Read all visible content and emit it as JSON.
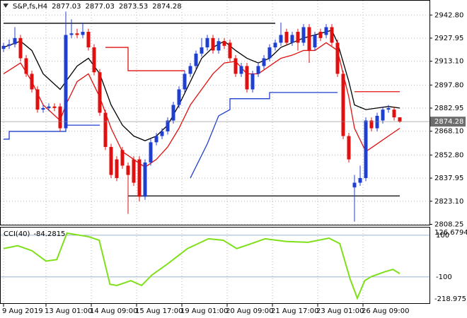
{
  "chart_data": [
    {
      "type": "candlestick",
      "title": "S&P,fs,H4",
      "open": [
        2921,
        2923,
        2924,
        2928,
        2915,
        2905,
        2895,
        2882,
        2883,
        2884,
        2884,
        2870,
        2930,
        2931,
        2930,
        2932,
        2922,
        2906,
        2880,
        2858,
        2850,
        2856,
        2846,
        2850,
        2850,
        2826,
        2848,
        2861,
        2865,
        2868,
        2875,
        2885,
        2895,
        2905,
        2910,
        2918,
        2922,
        2928,
        2920,
        2926,
        2925,
        2915,
        2905,
        2910,
        2895,
        2905,
        2910,
        2915,
        2922,
        2925,
        2932,
        2925,
        2932,
        2925,
        2935,
        2922,
        2932,
        2930,
        2935,
        2925,
        2905,
        2865,
        2832,
        2835,
        2838,
        2875,
        2870,
        2875,
        2882,
        2882,
        2877.03
      ],
      "high": [
        2925,
        2927,
        2935,
        2930,
        2917,
        2907,
        2897,
        2885,
        2886,
        2886,
        2886,
        2945,
        2940,
        2934,
        2938,
        2934,
        2924,
        2908,
        2882,
        2860,
        2852,
        2858,
        2848,
        2852,
        2852,
        2850,
        2863,
        2867,
        2870,
        2877,
        2887,
        2897,
        2907,
        2912,
        2920,
        2928,
        2930,
        2930,
        2928,
        2928,
        2927,
        2917,
        2912,
        2912,
        2907,
        2912,
        2917,
        2924,
        2927,
        2938,
        2934,
        2932,
        2934,
        2937,
        2937,
        2932,
        2934,
        2937,
        2937,
        2927,
        2907,
        2867,
        2840,
        2846,
        2877,
        2877,
        2880,
        2884,
        2885,
        2884,
        2877.03
      ],
      "low": [
        2919,
        2921,
        2922,
        2913,
        2903,
        2893,
        2880,
        2880,
        2881,
        2881,
        2868,
        2868,
        2928,
        2928,
        2928,
        2920,
        2904,
        2878,
        2856,
        2838,
        2836,
        2844,
        2815,
        2833,
        2823,
        2824,
        2846,
        2859,
        2863,
        2866,
        2873,
        2883,
        2893,
        2903,
        2908,
        2916,
        2920,
        2918,
        2918,
        2921,
        2913,
        2903,
        2903,
        2893,
        2893,
        2903,
        2908,
        2913,
        2920,
        2923,
        2923,
        2923,
        2920,
        2923,
        2912,
        2920,
        2926,
        2928,
        2923,
        2903,
        2863,
        2848,
        2810,
        2833,
        2836,
        2868,
        2868,
        2873,
        2880,
        2875,
        2873.53
      ],
      "close": [
        2923,
        2924,
        2928,
        2915,
        2905,
        2895,
        2882,
        2883,
        2884,
        2883,
        2870,
        2930,
        2931,
        2930,
        2932,
        2922,
        2906,
        2880,
        2858,
        2840,
        2838,
        2846,
        2840,
        2835,
        2826,
        2848,
        2861,
        2865,
        2868,
        2875,
        2885,
        2895,
        2905,
        2910,
        2918,
        2922,
        2928,
        2920,
        2926,
        2923,
        2915,
        2905,
        2910,
        2895,
        2905,
        2910,
        2915,
        2922,
        2925,
        2930,
        2925,
        2930,
        2925,
        2935,
        2920,
        2930,
        2928,
        2935,
        2925,
        2905,
        2865,
        2850,
        2835,
        2838,
        2875,
        2870,
        2878,
        2882,
        2883,
        2877,
        2874.28
      ],
      "bull_color": "#1f3fd0",
      "bear_color": "#e01010",
      "ylim": [
        2808.0,
        2952.0
      ],
      "yticks": [
        {
          "value": 2942.8,
          "label": "2942.80"
        },
        {
          "value": 2927.95,
          "label": "2927.95"
        },
        {
          "value": 2913.1,
          "label": "2913.10"
        },
        {
          "value": 2897.8,
          "label": "2897.80"
        },
        {
          "value": 2882.95,
          "label": "2882.95"
        },
        {
          "value": 2868.1,
          "label": "2868.10"
        },
        {
          "value": 2852.8,
          "label": "2852.80"
        },
        {
          "value": 2837.95,
          "label": "2837.95"
        },
        {
          "value": 2823.1,
          "label": "2823.10"
        },
        {
          "value": 2808.25,
          "label": "2808.25"
        }
      ],
      "xticks": [
        {
          "value": 0,
          "label": "9 Aug 2019"
        },
        {
          "value": 7.5,
          "label": "13 Aug 01:00"
        },
        {
          "value": 15.5,
          "label": "14 Aug 09:00"
        },
        {
          "value": 23.5,
          "label": "15 Aug 17:00"
        },
        {
          "value": 31.5,
          "label": "19 Aug 01:00"
        },
        {
          "value": 39.5,
          "label": "20 Aug 09:00"
        },
        {
          "value": 47.5,
          "label": "21 Aug 17:00"
        },
        {
          "value": 55.5,
          "label": "23 Aug 01:00"
        },
        {
          "value": 63.5,
          "label": "26 Aug 09:00"
        }
      ],
      "grid": true,
      "lines": [
        {
          "color": "#000000",
          "x": [
            0,
            3,
            5,
            7,
            10,
            11,
            13,
            15,
            17,
            19,
            21,
            23,
            25,
            27,
            29,
            31,
            33,
            35,
            37,
            39,
            41,
            43,
            45,
            47,
            49,
            51,
            53,
            55,
            57,
            58,
            59,
            61,
            62,
            64,
            66,
            68,
            70
          ],
          "values": [
            2922,
            2926,
            2920,
            2905,
            2895,
            2900,
            2910,
            2915,
            2905,
            2885,
            2872,
            2865,
            2862,
            2865,
            2872,
            2885,
            2900,
            2915,
            2922,
            2926,
            2920,
            2915,
            2912,
            2915,
            2922,
            2925,
            2928,
            2930,
            2932,
            2933,
            2925,
            2900,
            2885,
            2882,
            2883,
            2884,
            2883
          ]
        },
        {
          "color": "#e01010",
          "x": [
            0,
            3,
            5,
            7,
            10,
            11,
            13,
            15,
            17,
            19,
            21,
            23,
            25,
            27,
            29,
            31,
            33,
            35,
            37,
            39,
            41,
            43,
            45,
            47,
            49,
            51,
            53,
            55,
            57,
            59,
            61,
            62,
            64,
            66,
            68,
            70
          ],
          "values": [
            2905,
            2912,
            2900,
            2885,
            2875,
            2885,
            2900,
            2905,
            2890,
            2870,
            2855,
            2850,
            2845,
            2850,
            2858,
            2870,
            2885,
            2895,
            2905,
            2912,
            2913,
            2905,
            2905,
            2910,
            2915,
            2917,
            2920,
            2920,
            2925,
            2920,
            2890,
            2870,
            2855,
            2860,
            2865,
            2870
          ]
        },
        {
          "color": "#e01010",
          "x": [
            18,
            22,
            22,
            32
          ],
          "values": [
            2922,
            2922,
            2907,
            2907
          ]
        },
        {
          "color": "#e01010",
          "x": [
            62,
            70
          ],
          "values": [
            2893.5,
            2893.5
          ]
        },
        {
          "color": "#1f3fd0",
          "x": [
            0,
            1,
            1,
            11,
            11,
            17
          ],
          "values": [
            2863,
            2863,
            2868,
            2868,
            2872,
            2872
          ]
        },
        {
          "color": "#1f3fd0",
          "x": [
            33,
            36,
            38,
            40,
            40,
            47,
            47,
            59
          ],
          "values": [
            2838,
            2860,
            2878,
            2882,
            2889,
            2889,
            2893,
            2893
          ]
        },
        {
          "color": "#000000",
          "x": [
            0,
            48
          ],
          "values": [
            2937.5,
            2937.5
          ]
        },
        {
          "color": "#000000",
          "x": [
            22,
            70
          ],
          "values": [
            2826.5,
            2826.5
          ]
        }
      ]
    },
    {
      "type": "line",
      "title": "CCI(40)",
      "color": "#7fe01a",
      "x": [
        0,
        2.5,
        5,
        7.5,
        9.4,
        11.2,
        15,
        16.9,
        18.8,
        20,
        22.5,
        24.4,
        26.2,
        28.8,
        32.5,
        36.2,
        38.8,
        41.2,
        43.8,
        46.2,
        50,
        53.8,
        57.5,
        59.4,
        61.2,
        62.5,
        63.8,
        65,
        67.5,
        68.8,
        70
      ],
      "values": [
        36,
        50,
        26,
        -24,
        -17,
        110,
        93,
        76,
        -135,
        -141,
        -118,
        -141,
        -91,
        -41,
        36,
        83,
        76,
        36,
        60,
        83,
        70,
        66,
        86,
        60,
        -108,
        -202,
        -118,
        -98,
        -74,
        -64,
        -84.2815
      ],
      "ylim": [
        -218.9751,
        126.6794
      ],
      "yticks": [
        100,
        -100
      ]
    }
  ]
}
